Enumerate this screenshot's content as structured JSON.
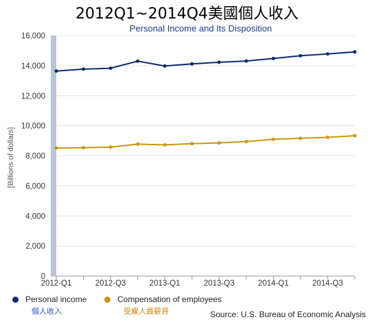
{
  "chart_data": {
    "type": "line",
    "title": "2012Q1~2014Q4美國個人收入",
    "subtitle": "Personal Income and Its Disposition",
    "ylabel": "[Billions of dollars]",
    "xlabel": "",
    "ylim": [
      0,
      16000
    ],
    "yticks": [
      "0",
      "2,000",
      "4,000",
      "6,000",
      "8,000",
      "10,000",
      "12,000",
      "14,000",
      "16,000"
    ],
    "x": [
      "2012-Q1",
      "2012-Q2",
      "2012-Q3",
      "2012-Q4",
      "2013-Q1",
      "2013-Q2",
      "2013-Q3",
      "2013-Q4",
      "2014-Q1",
      "2014-Q2",
      "2014-Q3",
      "2014-Q4"
    ],
    "xtick_labels": [
      "2012-Q1",
      "2012-Q3",
      "2013-Q1",
      "2013-Q3",
      "2014-Q1",
      "2014-Q3"
    ],
    "grid": true,
    "legend_position": "bottom-left",
    "series": [
      {
        "name": "Personal income",
        "name_zh": "個人收入",
        "color": "#0d2a6e",
        "label_color": "#2a55c9",
        "values": [
          13640,
          13770,
          13830,
          14300,
          13980,
          14120,
          14230,
          14310,
          14480,
          14660,
          14780,
          14920
        ]
      },
      {
        "name": "Compensation of employees",
        "name_zh": "受雇人員薪資",
        "color": "#c9960c",
        "label_color": "#d4820a",
        "values": [
          8520,
          8540,
          8580,
          8780,
          8730,
          8810,
          8860,
          8950,
          9100,
          9170,
          9230,
          9340
        ]
      }
    ]
  },
  "source": "Source: U.S. Bureau of Economic Analysis"
}
